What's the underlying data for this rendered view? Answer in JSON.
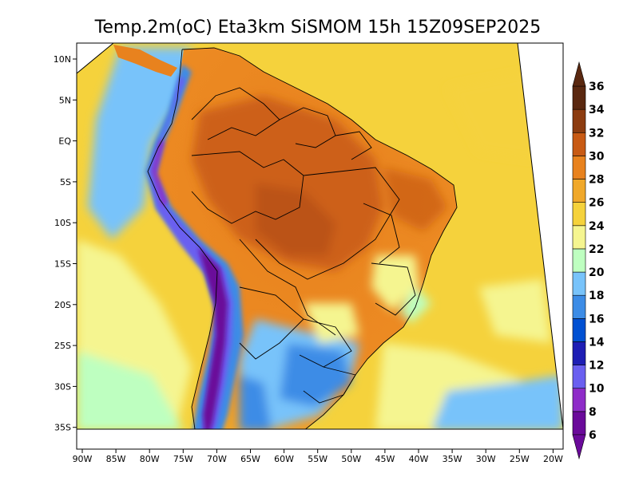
{
  "title": "Temp.2m(oC) Eta3km SiSMOM 15h 15Z09SEP2025",
  "axes": {
    "lat_ticks": [
      {
        "label": "10N",
        "lat": 10
      },
      {
        "label": "5N",
        "lat": 5
      },
      {
        "label": "EQ",
        "lat": 0
      },
      {
        "label": "5S",
        "lat": -5
      },
      {
        "label": "10S",
        "lat": -10
      },
      {
        "label": "15S",
        "lat": -15
      },
      {
        "label": "20S",
        "lat": -20
      },
      {
        "label": "25S",
        "lat": -25
      },
      {
        "label": "30S",
        "lat": -30
      },
      {
        "label": "35S",
        "lat": -35
      }
    ],
    "lon_ticks": [
      {
        "label": "90W",
        "lon": -90
      },
      {
        "label": "85W",
        "lon": -85
      },
      {
        "label": "80W",
        "lon": -80
      },
      {
        "label": "75W",
        "lon": -75
      },
      {
        "label": "70W",
        "lon": -70
      },
      {
        "label": "65W",
        "lon": -65
      },
      {
        "label": "60W",
        "lon": -60
      },
      {
        "label": "55W",
        "lon": -55
      },
      {
        "label": "50W",
        "lon": -50
      },
      {
        "label": "45W",
        "lon": -45
      },
      {
        "label": "40W",
        "lon": -40
      },
      {
        "label": "35W",
        "lon": -35
      },
      {
        "label": "30W",
        "lon": -30
      },
      {
        "label": "25W",
        "lon": -25
      },
      {
        "label": "20W",
        "lon": -20
      }
    ],
    "lon_range": [
      -91,
      -19
    ],
    "lat_range": [
      -38,
      12
    ]
  },
  "colorbar": {
    "units": "oC",
    "levels": [
      6,
      8,
      10,
      12,
      14,
      16,
      18,
      20,
      22,
      24,
      26,
      28,
      30,
      32,
      34,
      36
    ],
    "level_labels": [
      "6",
      "8",
      "10",
      "12",
      "14",
      "16",
      "18",
      "20",
      "22",
      "24",
      "26",
      "28",
      "30",
      "32",
      "34",
      "36"
    ],
    "colors": [
      "#6a0a9a",
      "#8e2cc8",
      "#6a5ff0",
      "#1e1eb4",
      "#0050d2",
      "#3c8ce6",
      "#78c3fa",
      "#beffc0",
      "#f5f590",
      "#f5d23c",
      "#f0a82a",
      "#e8821e",
      "#c85a14",
      "#8c3c10",
      "#5a2810"
    ],
    "under_color": "#6a0a9a",
    "over_color": "#5a2810"
  }
}
